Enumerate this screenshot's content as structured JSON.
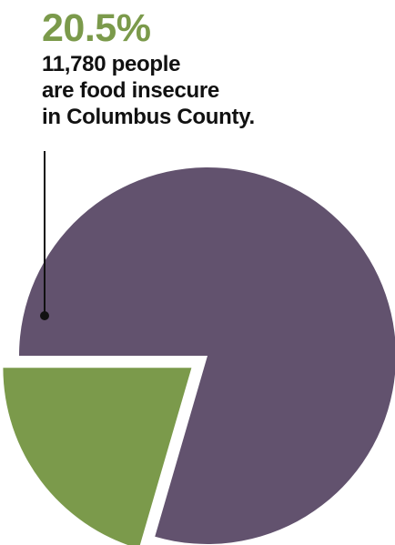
{
  "chart_data": {
    "type": "pie",
    "slices": [
      {
        "value": 20.5,
        "color": "#7b9a4b",
        "exploded": true
      },
      {
        "value": 79.5,
        "color": "#62526e",
        "exploded": false
      }
    ]
  },
  "callout": {
    "percent": "20.5%",
    "lines": [
      "11,780 people",
      "are food insecure",
      "in Columbus County."
    ]
  },
  "colors": {
    "food_insecure": "#7b9a4b",
    "food_secure": "#62526e",
    "leader_line": "#111111"
  }
}
